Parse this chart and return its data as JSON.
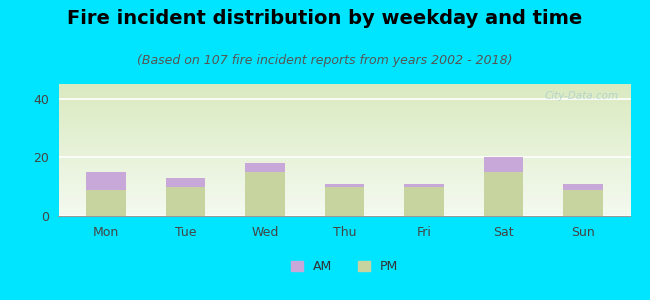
{
  "title": "Fire incident distribution by weekday and time",
  "subtitle": "(Based on 107 fire incident reports from years 2002 - 2018)",
  "categories": [
    "Mon",
    "Tue",
    "Wed",
    "Thu",
    "Fri",
    "Sat",
    "Sun"
  ],
  "pm_values": [
    9,
    10,
    15,
    10,
    10,
    15,
    9
  ],
  "am_values": [
    6,
    3,
    3,
    1,
    1,
    5,
    2
  ],
  "am_color": "#c8a8d8",
  "pm_color": "#c8d4a0",
  "background_outer": "#00e5ff",
  "ylim": [
    0,
    45
  ],
  "yticks": [
    0,
    20,
    40
  ],
  "bar_width": 0.5,
  "title_fontsize": 14,
  "subtitle_fontsize": 9,
  "tick_fontsize": 9,
  "legend_fontsize": 9,
  "watermark": "City-Data.com",
  "grad_top": "#daeac0",
  "grad_bottom": "#f4faf0"
}
